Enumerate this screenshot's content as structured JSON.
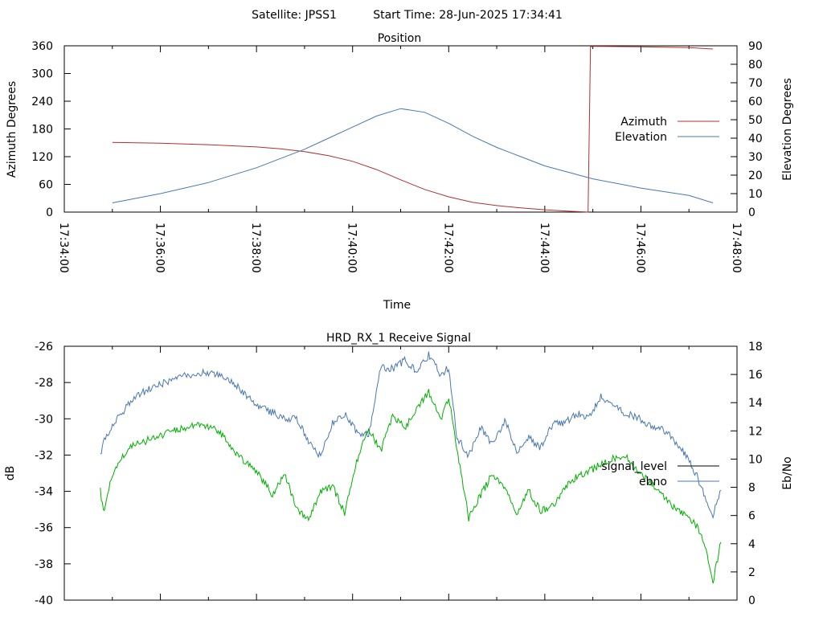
{
  "header": {
    "satellite_text": "Satellite: JPSS1",
    "start_time_text": "Start Time: 28-Jun-2025 17:34:41"
  },
  "chart_data": [
    {
      "type": "line",
      "title": "Position",
      "xlabel": "Time",
      "ylabel": "Azimuth Degrees",
      "y2label": "Elevation Degrees",
      "xlim": [
        "17:34:00",
        "17:48:00"
      ],
      "x_ticks": [
        "17:34:00",
        "17:36:00",
        "17:38:00",
        "17:40:00",
        "17:42:00",
        "17:44:00",
        "17:46:00",
        "17:48:00"
      ],
      "ylim": [
        0,
        360
      ],
      "y_ticks": [
        "0",
        "60",
        "120",
        "180",
        "240",
        "300",
        "360"
      ],
      "y2lim": [
        0,
        90
      ],
      "y2_ticks": [
        "0",
        "10",
        "20",
        "30",
        "40",
        "50",
        "60",
        "70",
        "80",
        "90"
      ],
      "grid": false,
      "legend_position": "right",
      "series": [
        {
          "name": "Azimuth",
          "axis": "y",
          "color": "#b03030",
          "x": [
            "17:35:00",
            "17:36:00",
            "17:37:00",
            "17:38:00",
            "17:38:30",
            "17:39:00",
            "17:39:30",
            "17:40:00",
            "17:40:30",
            "17:41:00",
            "17:41:30",
            "17:42:00",
            "17:42:30",
            "17:43:00",
            "17:43:30",
            "17:44:00",
            "17:44:30",
            "17:44:50",
            "17:44:54",
            "17:44:57",
            "17:45:00",
            "17:46:00",
            "17:47:00",
            "17:47:30"
          ],
          "values": [
            151,
            149,
            146,
            141,
            137,
            131,
            122,
            110,
            92,
            70,
            49,
            33,
            21,
            14,
            9,
            5,
            2,
            0.5,
            0,
            358,
            359,
            358,
            356,
            353
          ]
        },
        {
          "name": "Elevation",
          "axis": "y2",
          "color": "#4a78b0",
          "x": [
            "17:35:00",
            "17:36:00",
            "17:37:00",
            "17:38:00",
            "17:38:30",
            "17:39:00",
            "17:39:30",
            "17:40:00",
            "17:40:30",
            "17:41:00",
            "17:41:30",
            "17:42:00",
            "17:42:30",
            "17:43:00",
            "17:43:30",
            "17:44:00",
            "17:45:00",
            "17:46:00",
            "17:47:00",
            "17:47:30"
          ],
          "values": [
            5,
            10,
            16,
            24,
            29,
            34,
            40,
            46,
            52,
            56,
            54,
            48,
            41,
            35,
            30,
            25,
            18,
            13,
            9,
            5
          ]
        }
      ]
    },
    {
      "type": "line",
      "title": "HRD_RX_1 Receive Signal",
      "ylabel": "dB",
      "y2label": "Eb/No",
      "ylim": [
        -40,
        -26
      ],
      "y_ticks": [
        "-40",
        "-38",
        "-36",
        "-34",
        "-32",
        "-30",
        "-28",
        "-26"
      ],
      "y2lim": [
        0,
        18
      ],
      "y2_ticks": [
        "0",
        "2",
        "4",
        "6",
        "8",
        "10",
        "12",
        "14",
        "16",
        "18"
      ],
      "grid": false,
      "legend_position": "right",
      "series": [
        {
          "name": "signal_level",
          "axis": "y",
          "color": "#000000",
          "line_color": "#00b000",
          "x": [
            "17:34:45",
            "17:34:50",
            "17:35:00",
            "17:35:10",
            "17:35:20",
            "17:35:30",
            "17:35:40",
            "17:35:50",
            "17:36:00",
            "17:36:15",
            "17:36:30",
            "17:36:45",
            "17:37:00",
            "17:37:15",
            "17:37:30",
            "17:37:45",
            "17:38:00",
            "17:38:20",
            "17:38:35",
            "17:38:50",
            "17:39:05",
            "17:39:20",
            "17:39:35",
            "17:39:50",
            "17:40:05",
            "17:40:20",
            "17:40:35",
            "17:40:50",
            "17:41:05",
            "17:41:20",
            "17:41:35",
            "17:41:50",
            "17:42:00",
            "17:42:10",
            "17:42:25",
            "17:42:40",
            "17:42:55",
            "17:43:10",
            "17:43:25",
            "17:43:40",
            "17:43:55",
            "17:44:10",
            "17:44:25",
            "17:44:40",
            "17:44:55",
            "17:45:10",
            "17:45:25",
            "17:45:40",
            "17:45:55",
            "17:46:10",
            "17:46:25",
            "17:46:40",
            "17:46:55",
            "17:47:10",
            "17:47:20",
            "17:47:30",
            "17:47:40"
          ],
          "values": [
            -34.0,
            -35.2,
            -33.0,
            -32.3,
            -31.6,
            -31.3,
            -31.3,
            -31.0,
            -30.9,
            -30.7,
            -30.5,
            -30.3,
            -30.4,
            -30.8,
            -31.6,
            -32.4,
            -32.9,
            -34.2,
            -33.0,
            -34.9,
            -35.6,
            -34.0,
            -33.7,
            -35.2,
            -32.4,
            -30.5,
            -31.8,
            -29.8,
            -30.5,
            -29.5,
            -28.5,
            -30.0,
            -28.8,
            -31.6,
            -35.5,
            -34.2,
            -33.0,
            -33.8,
            -35.2,
            -34.0,
            -35.1,
            -34.8,
            -33.8,
            -33.2,
            -32.9,
            -32.5,
            -32.2,
            -32.0,
            -32.9,
            -33.4,
            -34.2,
            -34.8,
            -35.3,
            -35.9,
            -37.0,
            -39.0,
            -36.8
          ]
        },
        {
          "name": "ebno",
          "axis": "y2",
          "color": "#4a78b0",
          "x": [
            "17:34:45",
            "17:34:50",
            "17:35:00",
            "17:35:10",
            "17:35:20",
            "17:35:30",
            "17:35:40",
            "17:35:50",
            "17:36:00",
            "17:36:15",
            "17:36:30",
            "17:36:45",
            "17:37:00",
            "17:37:15",
            "17:37:30",
            "17:37:45",
            "17:38:00",
            "17:38:20",
            "17:38:35",
            "17:38:50",
            "17:39:05",
            "17:39:20",
            "17:39:35",
            "17:39:50",
            "17:40:05",
            "17:40:20",
            "17:40:35",
            "17:40:50",
            "17:41:05",
            "17:41:20",
            "17:41:35",
            "17:41:50",
            "17:42:00",
            "17:42:10",
            "17:42:25",
            "17:42:40",
            "17:42:55",
            "17:43:10",
            "17:43:25",
            "17:43:40",
            "17:43:55",
            "17:44:10",
            "17:44:25",
            "17:44:40",
            "17:44:55",
            "17:45:10",
            "17:45:25",
            "17:45:40",
            "17:45:55",
            "17:46:10",
            "17:46:25",
            "17:46:40",
            "17:46:55",
            "17:47:10",
            "17:47:20",
            "17:47:30",
            "17:47:40"
          ],
          "values": [
            10.2,
            11.5,
            12.3,
            13.1,
            13.9,
            14.5,
            14.8,
            15.1,
            15.3,
            15.6,
            15.9,
            16.1,
            16.1,
            16.0,
            15.5,
            14.6,
            13.8,
            13.3,
            12.8,
            12.9,
            11.2,
            10.2,
            12.6,
            13.2,
            12.0,
            11.6,
            16.5,
            16.4,
            17.0,
            16.2,
            17.4,
            16.0,
            16.5,
            11.6,
            10.2,
            12.2,
            11.0,
            12.8,
            10.5,
            11.5,
            10.8,
            12.5,
            12.6,
            13.2,
            13.0,
            14.4,
            14.0,
            13.2,
            13.0,
            12.4,
            12.2,
            11.4,
            10.4,
            8.8,
            7.4,
            6.0,
            7.8
          ]
        }
      ]
    }
  ]
}
